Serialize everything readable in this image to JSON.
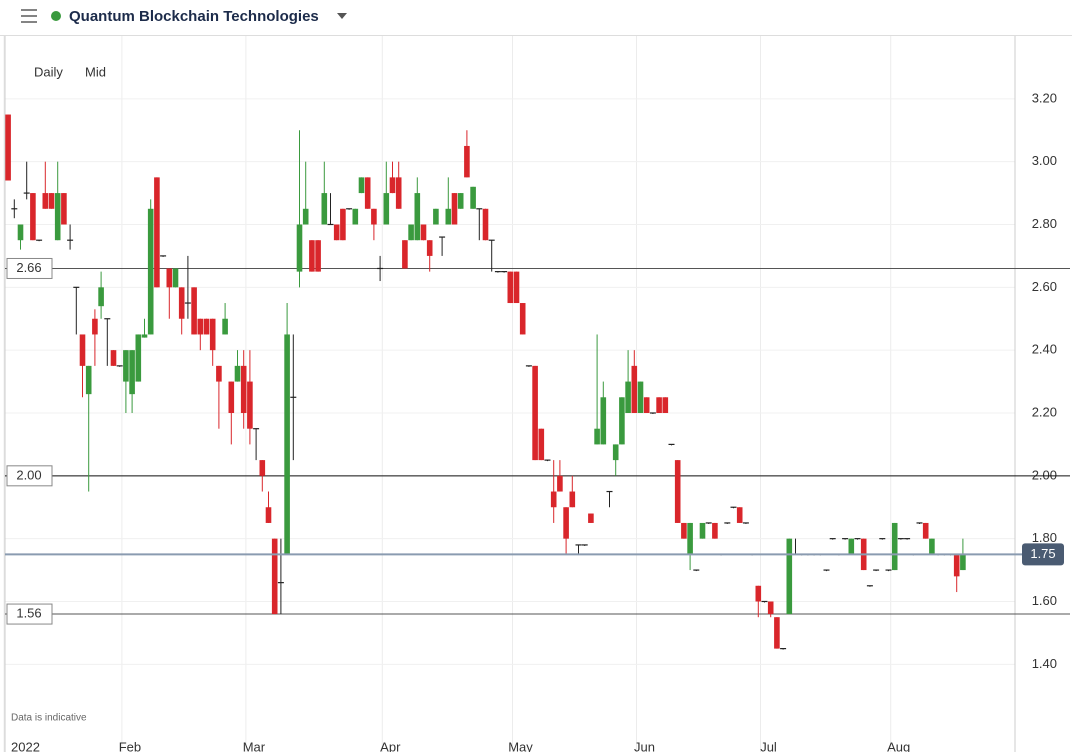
{
  "header": {
    "title": "Quantum Blockchain Technologies"
  },
  "controls": [
    "Daily",
    "Mid"
  ],
  "chart_data": {
    "type": "candlestick",
    "note": "Data is indicative",
    "up_color": "#3a9a3e",
    "down_color": "#d9262b",
    "flat_color": "#222222",
    "categories": [
      "2022",
      null,
      null,
      null,
      null,
      null,
      null,
      null,
      null,
      null,
      null,
      null,
      null,
      null,
      null,
      null,
      null,
      null,
      null,
      "Feb",
      null,
      null,
      null,
      null,
      null,
      null,
      null,
      null,
      null,
      null,
      null,
      null,
      null,
      null,
      null,
      null,
      null,
      null,
      null,
      "Mar",
      null,
      null,
      null,
      null,
      null,
      null,
      null,
      null,
      null,
      null,
      null,
      null,
      null,
      null,
      null,
      null,
      null,
      null,
      null,
      null,
      null,
      "Apr",
      null,
      null,
      null,
      null,
      null,
      null,
      null,
      null,
      null,
      null,
      null,
      null,
      null,
      null,
      null,
      null,
      null,
      null,
      null,
      null,
      "May",
      null,
      null,
      null,
      null,
      null,
      null,
      null,
      null,
      null,
      null,
      null,
      null,
      null,
      null,
      null,
      null,
      null,
      null,
      null,
      "Jun",
      null,
      null,
      null,
      null,
      null,
      null,
      null,
      null,
      null,
      null,
      null,
      null,
      null,
      null,
      null,
      null,
      null,
      null,
      null,
      "Jul",
      null,
      null,
      null,
      null,
      null,
      null,
      null,
      null,
      null,
      null,
      null,
      null,
      null,
      null,
      null,
      null,
      null,
      null,
      null,
      null,
      "Aug",
      null,
      null,
      null,
      null,
      null,
      null,
      null,
      null,
      null,
      null
    ],
    "ohlc": [
      [
        3.15,
        3.15,
        2.94,
        2.94
      ],
      [
        2.85,
        2.88,
        2.82,
        2.85
      ],
      [
        2.75,
        2.8,
        2.72,
        2.8
      ],
      [
        2.9,
        3.0,
        2.88,
        2.9
      ],
      [
        2.9,
        2.9,
        2.75,
        2.75
      ],
      [
        2.75,
        2.75,
        2.75,
        2.75
      ],
      [
        2.9,
        3.0,
        2.85,
        2.85
      ],
      [
        2.9,
        2.9,
        2.85,
        2.85
      ],
      [
        2.75,
        3.0,
        2.75,
        2.9
      ],
      [
        2.9,
        2.9,
        2.8,
        2.8
      ],
      [
        2.75,
        2.8,
        2.72,
        2.75
      ],
      [
        2.6,
        2.6,
        2.45,
        2.6
      ],
      [
        2.45,
        2.45,
        2.25,
        2.35
      ],
      [
        2.26,
        2.35,
        1.95,
        2.35
      ],
      [
        2.5,
        2.53,
        2.35,
        2.45
      ],
      [
        2.54,
        2.65,
        2.5,
        2.6
      ],
      [
        2.5,
        2.5,
        2.35,
        2.5
      ],
      [
        2.4,
        2.4,
        2.35,
        2.35
      ],
      [
        2.35,
        2.35,
        2.35,
        2.35
      ],
      [
        2.3,
        2.4,
        2.2,
        2.4
      ],
      [
        2.26,
        2.4,
        2.2,
        2.4
      ],
      [
        2.3,
        2.45,
        2.3,
        2.45
      ],
      [
        2.44,
        2.5,
        2.44,
        2.45
      ],
      [
        2.45,
        2.88,
        2.45,
        2.85
      ],
      [
        2.95,
        2.95,
        2.6,
        2.6
      ],
      [
        2.7,
        2.7,
        2.7,
        2.7
      ],
      [
        2.66,
        2.66,
        2.5,
        2.6
      ],
      [
        2.6,
        2.66,
        2.6,
        2.66
      ],
      [
        2.6,
        2.6,
        2.45,
        2.5
      ],
      [
        2.55,
        2.7,
        2.5,
        2.55
      ],
      [
        2.6,
        2.6,
        2.45,
        2.45
      ],
      [
        2.5,
        2.5,
        2.4,
        2.45
      ],
      [
        2.5,
        2.5,
        2.45,
        2.45
      ],
      [
        2.5,
        2.5,
        2.35,
        2.4
      ],
      [
        2.35,
        2.35,
        2.15,
        2.3
      ],
      [
        2.45,
        2.55,
        2.45,
        2.5
      ],
      [
        2.3,
        2.3,
        2.1,
        2.2
      ],
      [
        2.3,
        2.4,
        2.3,
        2.35
      ],
      [
        2.35,
        2.4,
        2.15,
        2.2
      ],
      [
        2.3,
        2.4,
        2.1,
        2.15
      ],
      [
        2.15,
        2.15,
        2.05,
        2.15
      ],
      [
        2.05,
        2.05,
        1.95,
        2.0
      ],
      [
        1.9,
        1.95,
        1.85,
        1.85
      ],
      [
        1.8,
        1.8,
        1.56,
        1.56
      ],
      [
        1.66,
        1.8,
        1.56,
        1.66
      ],
      [
        1.75,
        2.55,
        1.75,
        2.45
      ],
      [
        2.25,
        2.45,
        2.05,
        2.25
      ],
      [
        2.65,
        3.1,
        2.6,
        2.8
      ],
      [
        2.8,
        3.0,
        2.8,
        2.85
      ],
      [
        2.75,
        2.75,
        2.65,
        2.65
      ],
      [
        2.75,
        2.75,
        2.65,
        2.65
      ],
      [
        2.8,
        3.0,
        2.8,
        2.9
      ],
      [
        2.8,
        2.9,
        2.8,
        2.8
      ],
      [
        2.8,
        2.8,
        2.75,
        2.75
      ],
      [
        2.85,
        2.85,
        2.75,
        2.75
      ],
      [
        2.85,
        2.85,
        2.85,
        2.85
      ],
      [
        2.8,
        2.85,
        2.8,
        2.85
      ],
      [
        2.9,
        2.95,
        2.9,
        2.95
      ],
      [
        2.95,
        2.95,
        2.85,
        2.85
      ],
      [
        2.85,
        2.85,
        2.75,
        2.8
      ],
      [
        2.66,
        2.7,
        2.62,
        2.66
      ],
      [
        2.8,
        3.0,
        2.8,
        2.9
      ],
      [
        2.95,
        3.0,
        2.9,
        2.9
      ],
      [
        2.95,
        3.0,
        2.85,
        2.85
      ],
      [
        2.75,
        2.75,
        2.66,
        2.66
      ],
      [
        2.75,
        2.8,
        2.75,
        2.8
      ],
      [
        2.75,
        2.95,
        2.75,
        2.9
      ],
      [
        2.8,
        2.8,
        2.75,
        2.75
      ],
      [
        2.75,
        2.75,
        2.65,
        2.7
      ],
      [
        2.8,
        2.85,
        2.8,
        2.85
      ],
      [
        2.76,
        2.76,
        2.7,
        2.76
      ],
      [
        2.8,
        2.95,
        2.8,
        2.85
      ],
      [
        2.9,
        2.9,
        2.8,
        2.8
      ],
      [
        2.85,
        2.9,
        2.85,
        2.9
      ],
      [
        3.05,
        3.1,
        2.95,
        2.95
      ],
      [
        2.85,
        2.92,
        2.85,
        2.92
      ],
      [
        2.85,
        2.85,
        2.75,
        2.85
      ],
      [
        2.85,
        2.85,
        2.75,
        2.75
      ],
      [
        2.75,
        2.75,
        2.65,
        2.75
      ],
      [
        2.65,
        2.65,
        2.65,
        2.65
      ],
      [
        2.65,
        2.65,
        2.65,
        2.65
      ],
      [
        2.65,
        2.65,
        2.55,
        2.55
      ],
      [
        2.65,
        2.65,
        2.55,
        2.55
      ],
      [
        2.55,
        2.55,
        2.45,
        2.45
      ],
      [
        2.35,
        2.35,
        2.35,
        2.35
      ],
      [
        2.35,
        2.35,
        2.05,
        2.05
      ],
      [
        2.15,
        2.15,
        2.05,
        2.05
      ],
      [
        2.05,
        2.05,
        2.05,
        2.05
      ],
      [
        1.95,
        2.05,
        1.85,
        1.9
      ],
      [
        2.0,
        2.05,
        1.95,
        1.95
      ],
      [
        1.9,
        1.9,
        1.75,
        1.8
      ],
      [
        1.95,
        2.0,
        1.9,
        1.9
      ],
      [
        1.78,
        1.78,
        1.75,
        1.78
      ],
      [
        1.78,
        1.78,
        1.78,
        1.78
      ],
      [
        1.88,
        1.88,
        1.85,
        1.85
      ],
      [
        2.1,
        2.45,
        2.1,
        2.15
      ],
      [
        2.1,
        2.3,
        2.1,
        2.25
      ],
      [
        1.95,
        1.95,
        1.9,
        1.95
      ],
      [
        2.05,
        2.1,
        2.0,
        2.1
      ],
      [
        2.1,
        2.25,
        2.1,
        2.25
      ],
      [
        2.2,
        2.4,
        2.2,
        2.3
      ],
      [
        2.35,
        2.4,
        2.2,
        2.2
      ],
      [
        2.2,
        2.3,
        2.2,
        2.3
      ],
      [
        2.25,
        2.25,
        2.2,
        2.2
      ],
      [
        2.2,
        2.2,
        2.2,
        2.2
      ],
      [
        2.25,
        2.25,
        2.2,
        2.2
      ],
      [
        2.25,
        2.25,
        2.2,
        2.2
      ],
      [
        2.1,
        2.1,
        2.1,
        2.1
      ],
      [
        2.05,
        2.05,
        1.85,
        1.85
      ],
      [
        1.85,
        1.85,
        1.8,
        1.8
      ],
      [
        1.75,
        1.85,
        1.7,
        1.85
      ],
      [
        1.7,
        1.7,
        1.7,
        1.7
      ],
      [
        1.8,
        1.85,
        1.8,
        1.85
      ],
      [
        1.85,
        1.85,
        1.85,
        1.85
      ],
      [
        1.85,
        1.85,
        1.8,
        1.8
      ],
      [
        1.75,
        1.75,
        1.75,
        1.75
      ],
      [
        1.85,
        1.85,
        1.85,
        1.85
      ],
      [
        1.9,
        1.9,
        1.9,
        1.9
      ],
      [
        1.9,
        1.9,
        1.85,
        1.85
      ],
      [
        1.85,
        1.85,
        1.85,
        1.85
      ],
      [
        1.75,
        1.75,
        1.75,
        1.75
      ],
      [
        1.65,
        1.65,
        1.55,
        1.6
      ],
      [
        1.6,
        1.6,
        1.6,
        1.6
      ],
      [
        1.6,
        1.6,
        1.55,
        1.56
      ],
      [
        1.55,
        1.55,
        1.45,
        1.45
      ],
      [
        1.45,
        1.45,
        1.45,
        1.45
      ],
      [
        1.56,
        1.8,
        1.56,
        1.8
      ],
      [
        1.75,
        1.8,
        1.75,
        1.75
      ],
      [
        1.75,
        1.75,
        1.75,
        1.75
      ],
      [
        1.75,
        1.75,
        1.75,
        1.75
      ],
      [
        1.75,
        1.75,
        1.75,
        1.75
      ],
      [
        1.75,
        1.75,
        1.75,
        1.75
      ],
      [
        1.7,
        1.7,
        1.7,
        1.7
      ],
      [
        1.8,
        1.8,
        1.8,
        1.8
      ],
      [
        1.75,
        1.75,
        1.75,
        1.75
      ],
      [
        1.8,
        1.8,
        1.8,
        1.8
      ],
      [
        1.75,
        1.8,
        1.75,
        1.8
      ],
      [
        1.8,
        1.8,
        1.8,
        1.8
      ],
      [
        1.8,
        1.8,
        1.7,
        1.7
      ],
      [
        1.65,
        1.65,
        1.65,
        1.65
      ],
      [
        1.7,
        1.7,
        1.7,
        1.7
      ],
      [
        1.8,
        1.8,
        1.8,
        1.8
      ],
      [
        1.7,
        1.7,
        1.7,
        1.7
      ],
      [
        1.7,
        1.85,
        1.7,
        1.85
      ],
      [
        1.8,
        1.8,
        1.8,
        1.8
      ],
      [
        1.8,
        1.8,
        1.8,
        1.8
      ],
      [
        1.75,
        1.75,
        1.75,
        1.75
      ],
      [
        1.85,
        1.85,
        1.85,
        1.85
      ],
      [
        1.85,
        1.85,
        1.8,
        1.8
      ],
      [
        1.75,
        1.8,
        1.75,
        1.8
      ],
      [
        1.75,
        1.75,
        1.75,
        1.75
      ],
      [
        1.75,
        1.75,
        1.75,
        1.75
      ],
      [
        1.75,
        1.75,
        1.75,
        1.75
      ],
      [
        1.75,
        1.75,
        1.63,
        1.68
      ],
      [
        1.7,
        1.8,
        1.7,
        1.75
      ]
    ],
    "ylim": [
      1.14,
      3.4
    ],
    "yticks": [
      {
        "value": 1.4,
        "label": "1.40"
      },
      {
        "value": 1.6,
        "label": "1.60"
      },
      {
        "value": 1.8,
        "label": "1.80"
      },
      {
        "value": 2.0,
        "label": "2.00"
      },
      {
        "value": 2.2,
        "label": "2.20"
      },
      {
        "value": 2.4,
        "label": "2.40"
      },
      {
        "value": 2.6,
        "label": "2.60"
      },
      {
        "value": 2.8,
        "label": "2.80"
      },
      {
        "value": 3.0,
        "label": "3.00"
      },
      {
        "value": 3.2,
        "label": "3.20"
      }
    ],
    "levels": [
      2.66,
      {
        "value": 2.0,
        "label": "2.00"
      },
      1.56
    ],
    "last_price": 1.75
  }
}
